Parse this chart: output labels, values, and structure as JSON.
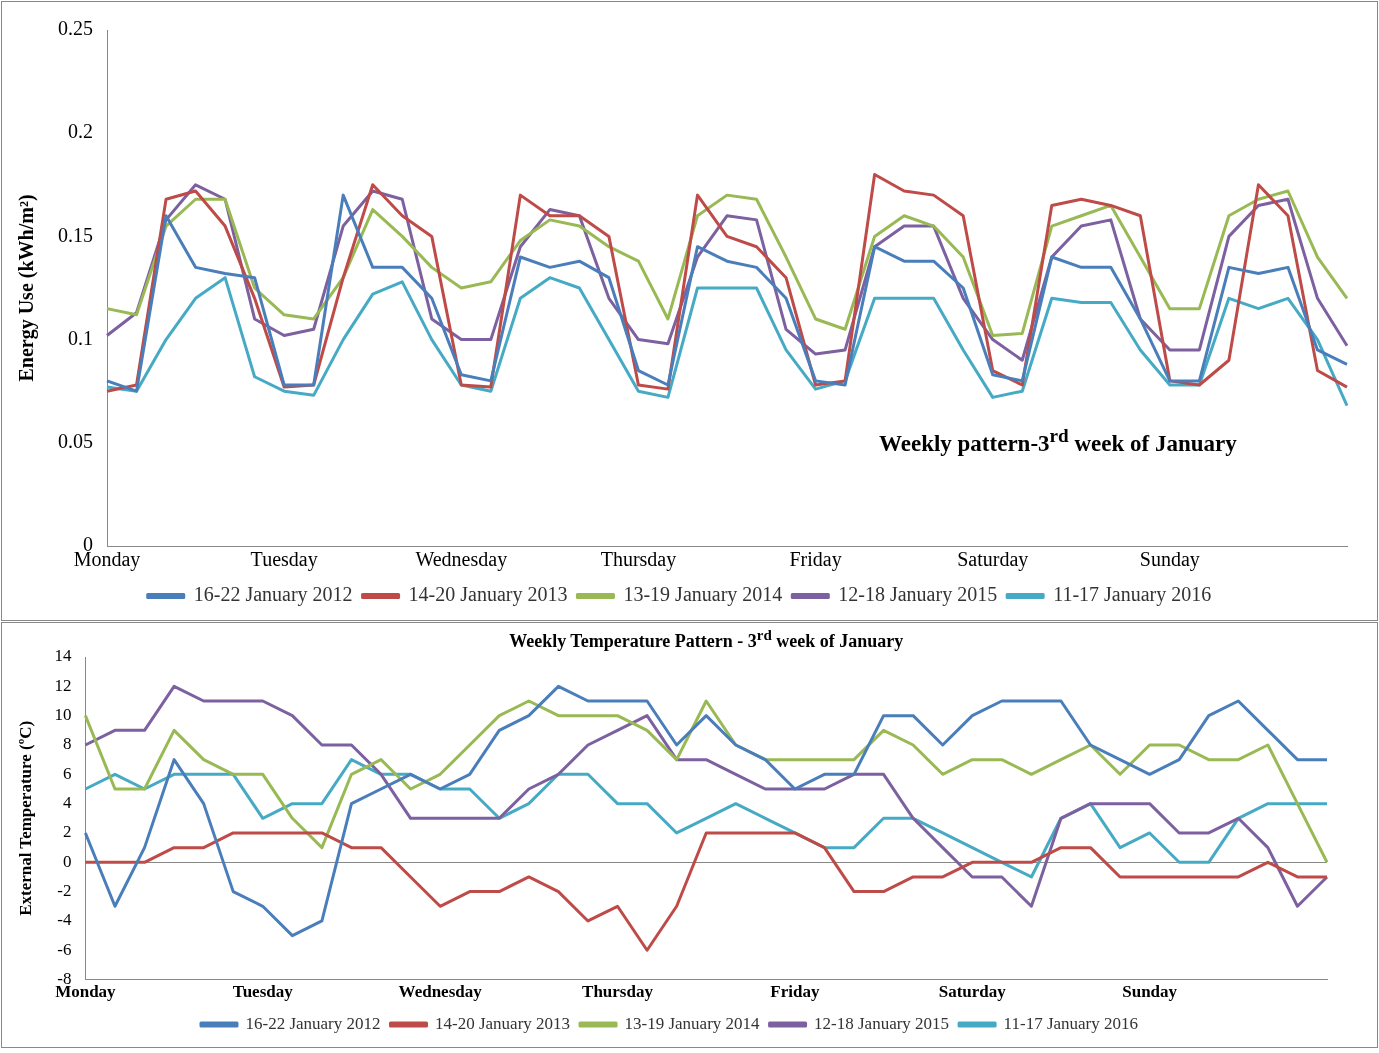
{
  "chart_data": [
    {
      "type": "line",
      "title": "Weekly pattern-3$^{rd}$ week of January",
      "ylabel": "Energy Use (kWh/m²)",
      "categories": [
        "Monday",
        null,
        null,
        null,
        null,
        null,
        "Tuesday",
        null,
        null,
        null,
        null,
        null,
        "Wednesday",
        null,
        null,
        null,
        null,
        null,
        "Thursday",
        null,
        null,
        null,
        null,
        null,
        "Friday",
        null,
        null,
        null,
        null,
        null,
        "Saturday",
        null,
        null,
        null,
        null,
        null,
        "Sunday",
        null,
        null,
        null,
        null,
        null,
        null
      ],
      "ylim": [
        0,
        0.25
      ],
      "yticks": [
        0,
        0.05,
        0.1,
        0.15,
        0.2,
        0.25
      ],
      "legend": "bottom",
      "marker": "none",
      "line_style": "solid",
      "series": [
        {
          "name": "16-22 January 2012",
          "color": "#4a7ebb",
          "values": [
            0.08,
            0.075,
            0.16,
            0.135,
            0.132,
            0.13,
            0.078,
            0.078,
            0.17,
            0.135,
            0.135,
            0.12,
            0.083,
            0.08,
            0.14,
            0.135,
            0.138,
            0.13,
            0.085,
            0.078,
            0.145,
            0.138,
            0.135,
            0.12,
            0.08,
            0.078,
            0.145,
            0.138,
            0.138,
            0.125,
            0.083,
            0.08,
            0.14,
            0.135,
            0.135,
            0.11,
            0.08,
            0.08,
            0.135,
            0.132,
            0.135,
            0.095,
            0.088
          ]
        },
        {
          "name": "14-20 January 2013",
          "color": "#be4b48",
          "values": [
            0.075,
            0.078,
            0.168,
            0.172,
            0.155,
            0.12,
            0.077,
            0.078,
            0.13,
            0.175,
            0.16,
            0.15,
            0.078,
            0.077,
            0.17,
            0.16,
            0.16,
            0.15,
            0.078,
            0.076,
            0.17,
            0.15,
            0.145,
            0.13,
            0.078,
            0.08,
            0.18,
            0.172,
            0.17,
            0.16,
            0.085,
            0.078,
            0.165,
            0.168,
            0.165,
            0.16,
            0.08,
            0.078,
            0.09,
            0.175,
            0.16,
            0.085,
            0.077
          ]
        },
        {
          "name": "13-19 January 2014",
          "color": "#98b954",
          "values": [
            0.115,
            0.112,
            0.155,
            0.168,
            0.168,
            0.125,
            0.112,
            0.11,
            0.13,
            0.163,
            0.15,
            0.135,
            0.125,
            0.128,
            0.148,
            0.158,
            0.155,
            0.145,
            0.138,
            0.11,
            0.16,
            0.17,
            0.168,
            0.14,
            0.11,
            0.105,
            0.15,
            0.16,
            0.155,
            0.14,
            0.102,
            0.103,
            0.155,
            0.16,
            0.165,
            0.14,
            0.115,
            0.115,
            0.16,
            0.168,
            0.172,
            0.14,
            0.12
          ]
        },
        {
          "name": "12-18 January 2015",
          "color": "#7d60a0",
          "values": [
            0.102,
            0.113,
            0.158,
            0.175,
            0.168,
            0.11,
            0.102,
            0.105,
            0.155,
            0.172,
            0.168,
            0.11,
            0.1,
            0.1,
            0.145,
            0.163,
            0.16,
            0.12,
            0.1,
            0.098,
            0.14,
            0.16,
            0.158,
            0.105,
            0.093,
            0.095,
            0.145,
            0.155,
            0.155,
            0.12,
            0.1,
            0.09,
            0.14,
            0.155,
            0.158,
            0.11,
            0.095,
            0.095,
            0.15,
            0.165,
            0.168,
            0.12,
            0.097
          ]
        },
        {
          "name": "11-17 January 2016",
          "color": "#46aac5",
          "values": [
            0.077,
            0.075,
            0.1,
            0.12,
            0.13,
            0.082,
            0.075,
            0.073,
            0.1,
            0.122,
            0.128,
            0.1,
            0.078,
            0.075,
            0.12,
            0.13,
            0.125,
            0.1,
            0.075,
            0.072,
            0.125,
            0.125,
            0.125,
            0.095,
            0.076,
            0.08,
            0.12,
            0.12,
            0.12,
            0.095,
            0.072,
            0.075,
            0.12,
            0.118,
            0.118,
            0.095,
            0.078,
            0.078,
            0.12,
            0.115,
            0.12,
            0.1,
            0.068
          ]
        }
      ]
    },
    {
      "type": "line",
      "title": "Weekly Temperature Pattern - 3$^{rd}$ week of January",
      "ylabel": "External Temperature (ºC)",
      "categories": [
        "Monday",
        null,
        null,
        null,
        null,
        null,
        "Tuesday",
        null,
        null,
        null,
        null,
        null,
        "Wednesday",
        null,
        null,
        null,
        null,
        null,
        "Thursday",
        null,
        null,
        null,
        null,
        null,
        "Friday",
        null,
        null,
        null,
        null,
        null,
        "Saturday",
        null,
        null,
        null,
        null,
        null,
        "Sunday",
        null,
        null,
        null,
        null,
        null,
        null
      ],
      "ylim": [
        -8,
        14
      ],
      "yticks": [
        -8,
        -6,
        -4,
        -2,
        0,
        2,
        4,
        6,
        8,
        10,
        12,
        14
      ],
      "legend": "bottom",
      "marker": "none",
      "line_style": "solid",
      "series": [
        {
          "name": "16-22 January 2012",
          "color": "#4a7ebb",
          "values": [
            2,
            -3,
            1,
            7,
            4,
            -2,
            -3,
            -5,
            -4,
            4,
            5,
            6,
            5,
            6,
            9,
            10,
            12,
            11,
            11,
            11,
            8,
            10,
            8,
            7,
            5,
            6,
            6,
            10,
            10,
            8,
            10,
            11,
            11,
            11,
            8,
            7,
            6,
            7,
            10,
            11,
            9,
            7,
            7
          ]
        },
        {
          "name": "14-20 January 2013",
          "color": "#be4b48",
          "values": [
            0,
            0,
            0,
            1,
            1,
            2,
            2,
            2,
            2,
            1,
            1,
            -1,
            -3,
            -2,
            -2,
            -1,
            -2,
            -4,
            -3,
            -6,
            -3,
            2,
            2,
            2,
            2,
            1,
            -2,
            -2,
            -1,
            -1,
            0,
            0,
            0,
            1,
            1,
            -1,
            -1,
            -1,
            -1,
            -1,
            0,
            -1,
            -1
          ]
        },
        {
          "name": "13-19 January 2014",
          "color": "#98b954",
          "values": [
            10,
            5,
            5,
            9,
            7,
            6,
            6,
            3,
            1,
            6,
            7,
            5,
            6,
            8,
            10,
            11,
            10,
            10,
            10,
            9,
            7,
            11,
            8,
            7,
            7,
            7,
            7,
            9,
            8,
            6,
            7,
            7,
            6,
            7,
            8,
            6,
            8,
            8,
            7,
            7,
            8,
            4,
            0
          ]
        },
        {
          "name": "12-18 January 2015",
          "color": "#7d60a0",
          "values": [
            8,
            9,
            9,
            12,
            11,
            11,
            11,
            10,
            8,
            8,
            6,
            3,
            3,
            3,
            3,
            5,
            6,
            8,
            9,
            10,
            7,
            7,
            6,
            5,
            5,
            5,
            6,
            6,
            3,
            1,
            -1,
            -1,
            -3,
            3,
            4,
            4,
            4,
            2,
            2,
            3,
            1,
            -3,
            -1
          ]
        },
        {
          "name": "11-17 January 2016",
          "color": "#46aac5",
          "values": [
            5,
            6,
            5,
            6,
            6,
            6,
            3,
            4,
            4,
            7,
            6,
            6,
            5,
            5,
            3,
            4,
            6,
            6,
            4,
            4,
            2,
            3,
            4,
            3,
            2,
            1,
            1,
            3,
            3,
            2,
            1,
            0,
            -1,
            3,
            4,
            1,
            2,
            0,
            0,
            3,
            4,
            4,
            4
          ]
        }
      ]
    }
  ]
}
